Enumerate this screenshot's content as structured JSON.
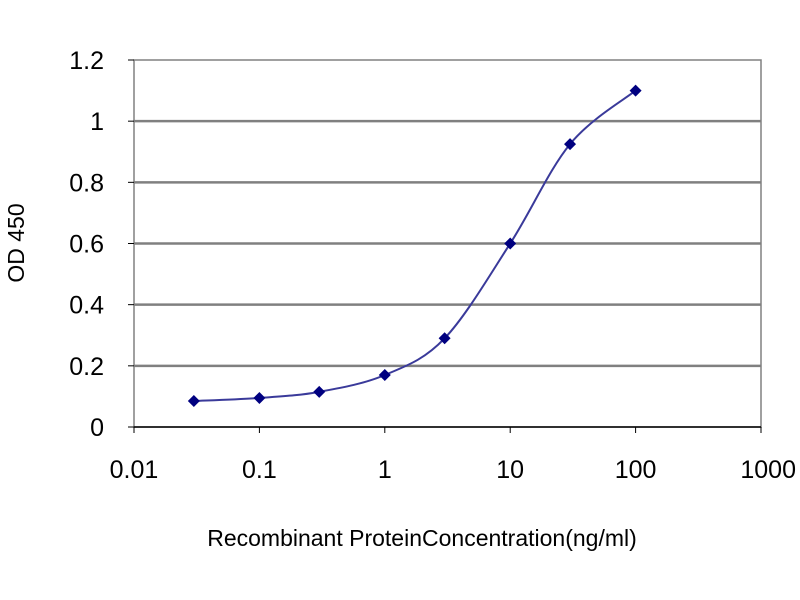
{
  "chart_data": {
    "type": "line",
    "title": "",
    "xlabel": "Recombinant ProteinConcentration(ng/ml)",
    "ylabel": "OD 450",
    "x_scale": "log",
    "xlim": [
      0.01,
      1000
    ],
    "ylim": [
      0,
      1.2
    ],
    "x_ticks": [
      0.01,
      0.1,
      1,
      10,
      100,
      1000
    ],
    "x_tick_labels": [
      "0.01",
      "0.1",
      "1",
      "10",
      "100",
      "1000"
    ],
    "y_ticks": [
      0,
      0.2,
      0.4,
      0.6,
      0.8,
      1,
      1.2
    ],
    "y_tick_labels": [
      "0",
      "0.2",
      "0.4",
      "0.6",
      "0.8",
      "1",
      "1.2"
    ],
    "grid": true,
    "legend": "none",
    "colors": {
      "plot_background": "#ffffff",
      "gridline": "#808080",
      "series_line": "#3a3a9a",
      "marker": "#000080"
    },
    "series": [
      {
        "x": [
          0.03,
          0.1,
          0.3,
          1,
          3,
          10,
          30,
          100
        ],
        "y": [
          0.085,
          0.095,
          0.115,
          0.17,
          0.29,
          0.6,
          0.925,
          1.1
        ]
      }
    ]
  }
}
